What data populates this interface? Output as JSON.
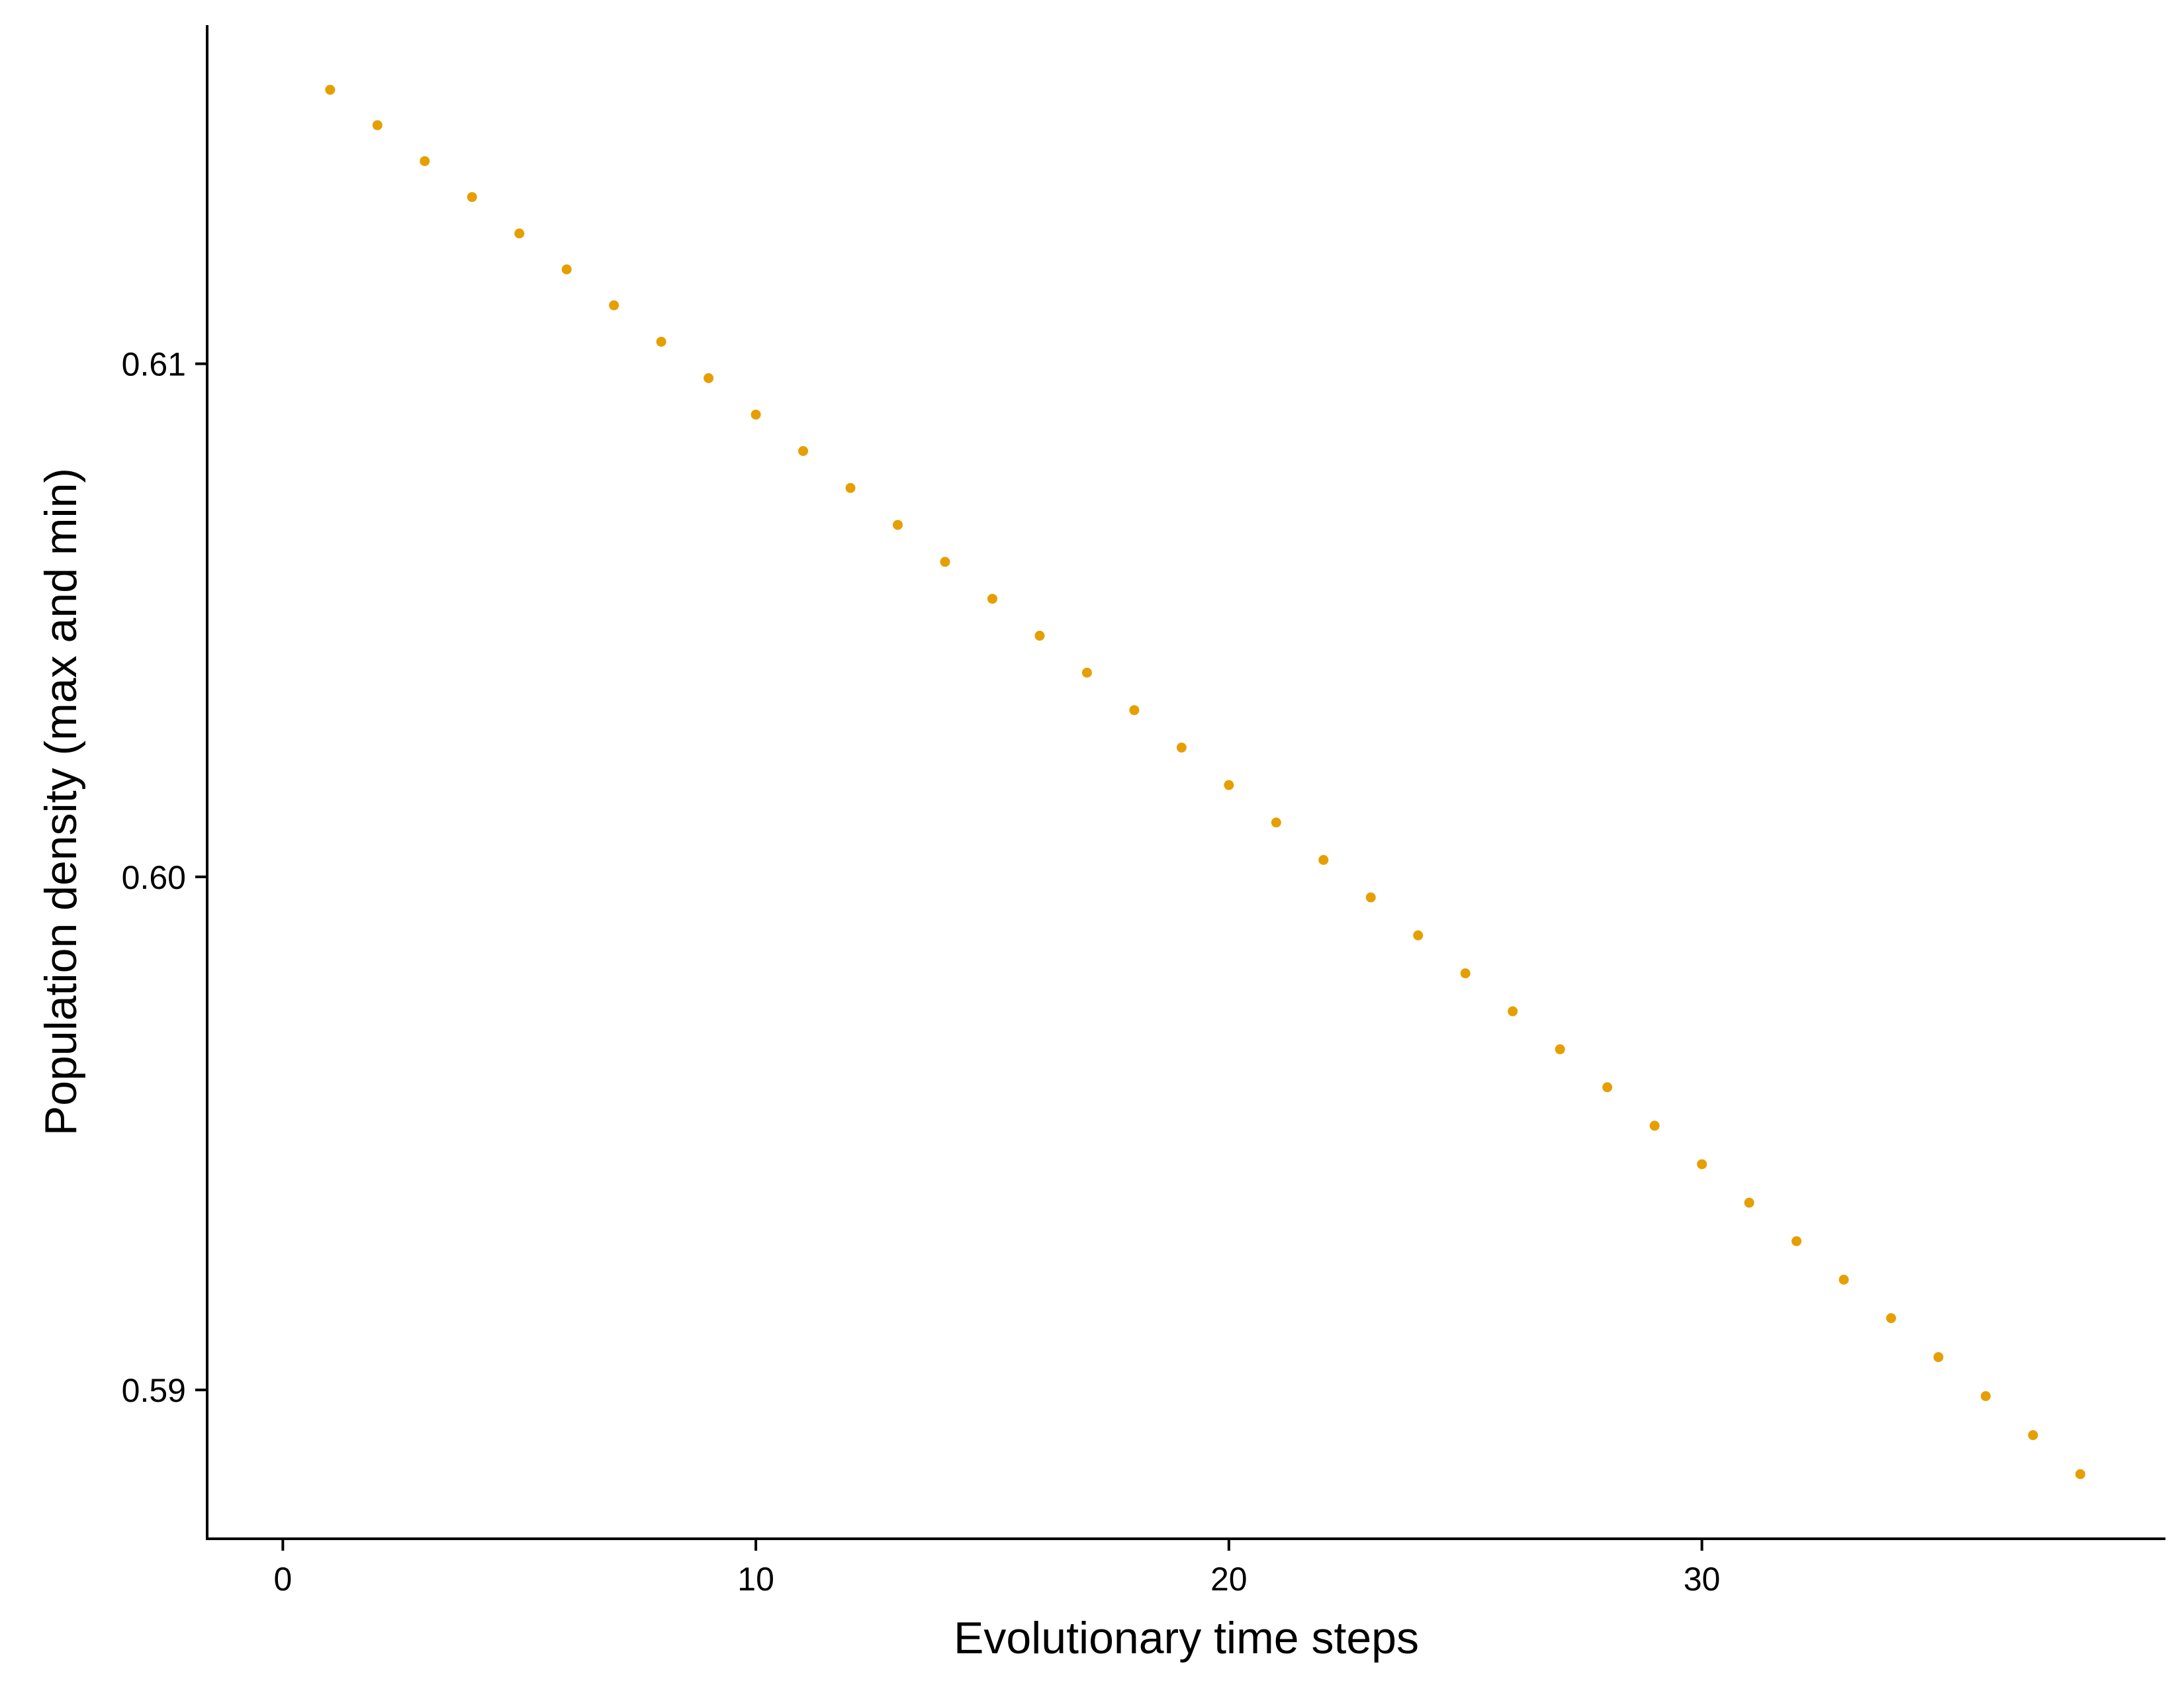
{
  "chart_data": {
    "type": "scatter",
    "title": "",
    "xlabel": "Evolutionary time steps",
    "ylabel": "Population density (max and min)",
    "xlim": [
      -1.6,
      39.8
    ],
    "ylim": [
      0.5871,
      0.6166
    ],
    "x_ticks": [
      {
        "value": 0,
        "label": "0"
      },
      {
        "value": 10,
        "label": "10"
      },
      {
        "value": 20,
        "label": "20"
      },
      {
        "value": 30,
        "label": "30"
      }
    ],
    "y_ticks": [
      {
        "value": 0.59,
        "label": "0.59"
      },
      {
        "value": 0.6,
        "label": "0.60"
      },
      {
        "value": 0.61,
        "label": "0.61"
      }
    ],
    "grid": false,
    "legend": "none",
    "point_color": "#E69F00",
    "series": [
      {
        "x": [
          1,
          2,
          3,
          4,
          5,
          6,
          7,
          8,
          9,
          10,
          11,
          12,
          13,
          14,
          15,
          16,
          17,
          18,
          19,
          20,
          21,
          22,
          23,
          24,
          25,
          26,
          27,
          28,
          29,
          30,
          31,
          32,
          33,
          34,
          35,
          36,
          37,
          38
        ],
        "y": [
          0.61534,
          0.61465,
          0.61395,
          0.61325,
          0.61254,
          0.61184,
          0.61114,
          0.61043,
          0.60972,
          0.60901,
          0.6083,
          0.60758,
          0.60686,
          0.60614,
          0.60542,
          0.6047,
          0.60398,
          0.60325,
          0.60252,
          0.60179,
          0.60106,
          0.60033,
          0.5996,
          0.59886,
          0.59812,
          0.59738,
          0.59664,
          0.5959,
          0.59515,
          0.5944,
          0.59365,
          0.5929,
          0.59215,
          0.5914,
          0.59064,
          0.58988,
          0.58912,
          0.58836
        ]
      }
    ]
  }
}
